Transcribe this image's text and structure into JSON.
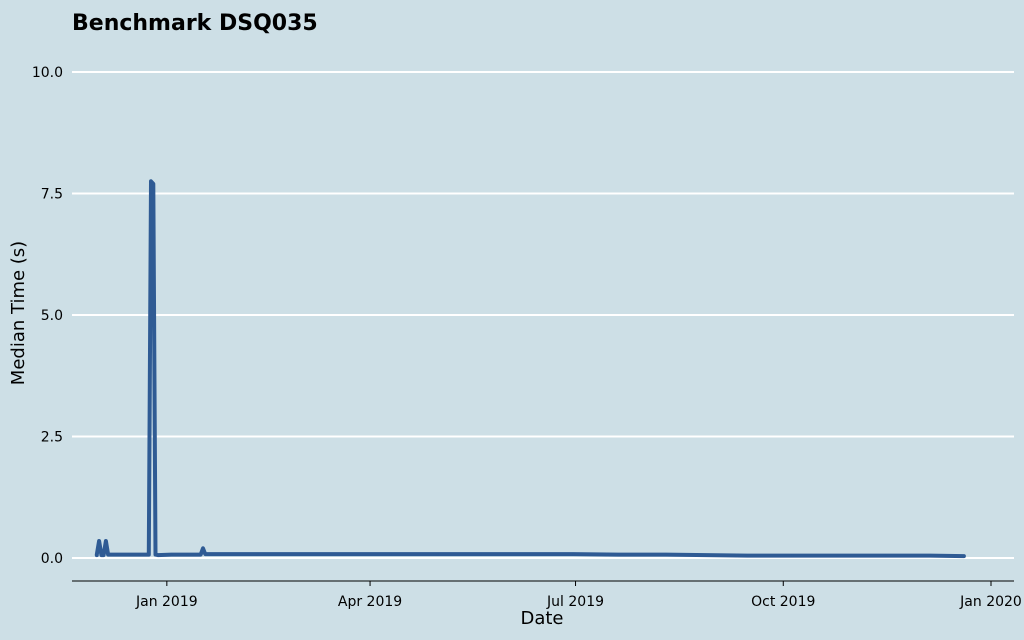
{
  "chart_data": {
    "type": "line",
    "title": "Benchmark DSQ035",
    "xlabel": "Date",
    "ylabel": "Median Time (s)",
    "xlim": [
      "2018-11-20",
      "2020-01-01"
    ],
    "ylim": [
      0,
      10
    ],
    "y_ticks": [
      {
        "value": 0,
        "label": "0.0"
      },
      {
        "value": 2.5,
        "label": "2.5"
      },
      {
        "value": 5,
        "label": "5.0"
      },
      {
        "value": 7.5,
        "label": "7.5"
      },
      {
        "value": 10,
        "label": "10.0"
      }
    ],
    "x_ticks": [
      {
        "value": "2019-01-01",
        "label": "Jan 2019"
      },
      {
        "value": "2019-04-01",
        "label": "Apr 2019"
      },
      {
        "value": "2019-07-01",
        "label": "Jul 2019"
      },
      {
        "value": "2019-10-01",
        "label": "Oct 2019"
      },
      {
        "value": "2020-01-01",
        "label": "Jan 2020"
      }
    ],
    "grid": "horizontal",
    "colors": {
      "line": "#2f5b94",
      "background": "#cddfe6",
      "gridline": "#ffffff",
      "axis": "#000000"
    },
    "series": [
      {
        "x": [
          "2018-12-01",
          "2018-12-01",
          "2018-12-02",
          "2018-12-03",
          "2018-12-04",
          "2018-12-05",
          "2018-12-06",
          "2018-12-10",
          "2018-12-15",
          "2018-12-20",
          "2018-12-24",
          "2018-12-25",
          "2018-12-26",
          "2018-12-27",
          "2018-12-28",
          "2019-01-03",
          "2019-01-10",
          "2019-01-16",
          "2019-01-17",
          "2019-01-18",
          "2019-01-25",
          "2019-02-10",
          "2019-03-01",
          "2019-03-20",
          "2019-04-10",
          "2019-05-01",
          "2019-05-20",
          "2019-06-10",
          "2019-06-30",
          "2019-07-20",
          "2019-08-10",
          "2019-08-28",
          "2019-09-15",
          "2019-10-05",
          "2019-10-25",
          "2019-11-15",
          "2019-12-05",
          "2019-12-20"
        ],
        "y": [
          0.06,
          0.07,
          0.35,
          0.06,
          0.06,
          0.35,
          0.07,
          0.07,
          0.07,
          0.07,
          0.07,
          7.75,
          7.7,
          0.07,
          0.06,
          0.07,
          0.07,
          0.07,
          0.2,
          0.08,
          0.08,
          0.08,
          0.08,
          0.08,
          0.08,
          0.08,
          0.08,
          0.08,
          0.08,
          0.07,
          0.07,
          0.06,
          0.05,
          0.05,
          0.05,
          0.05,
          0.05,
          0.04
        ]
      }
    ]
  }
}
